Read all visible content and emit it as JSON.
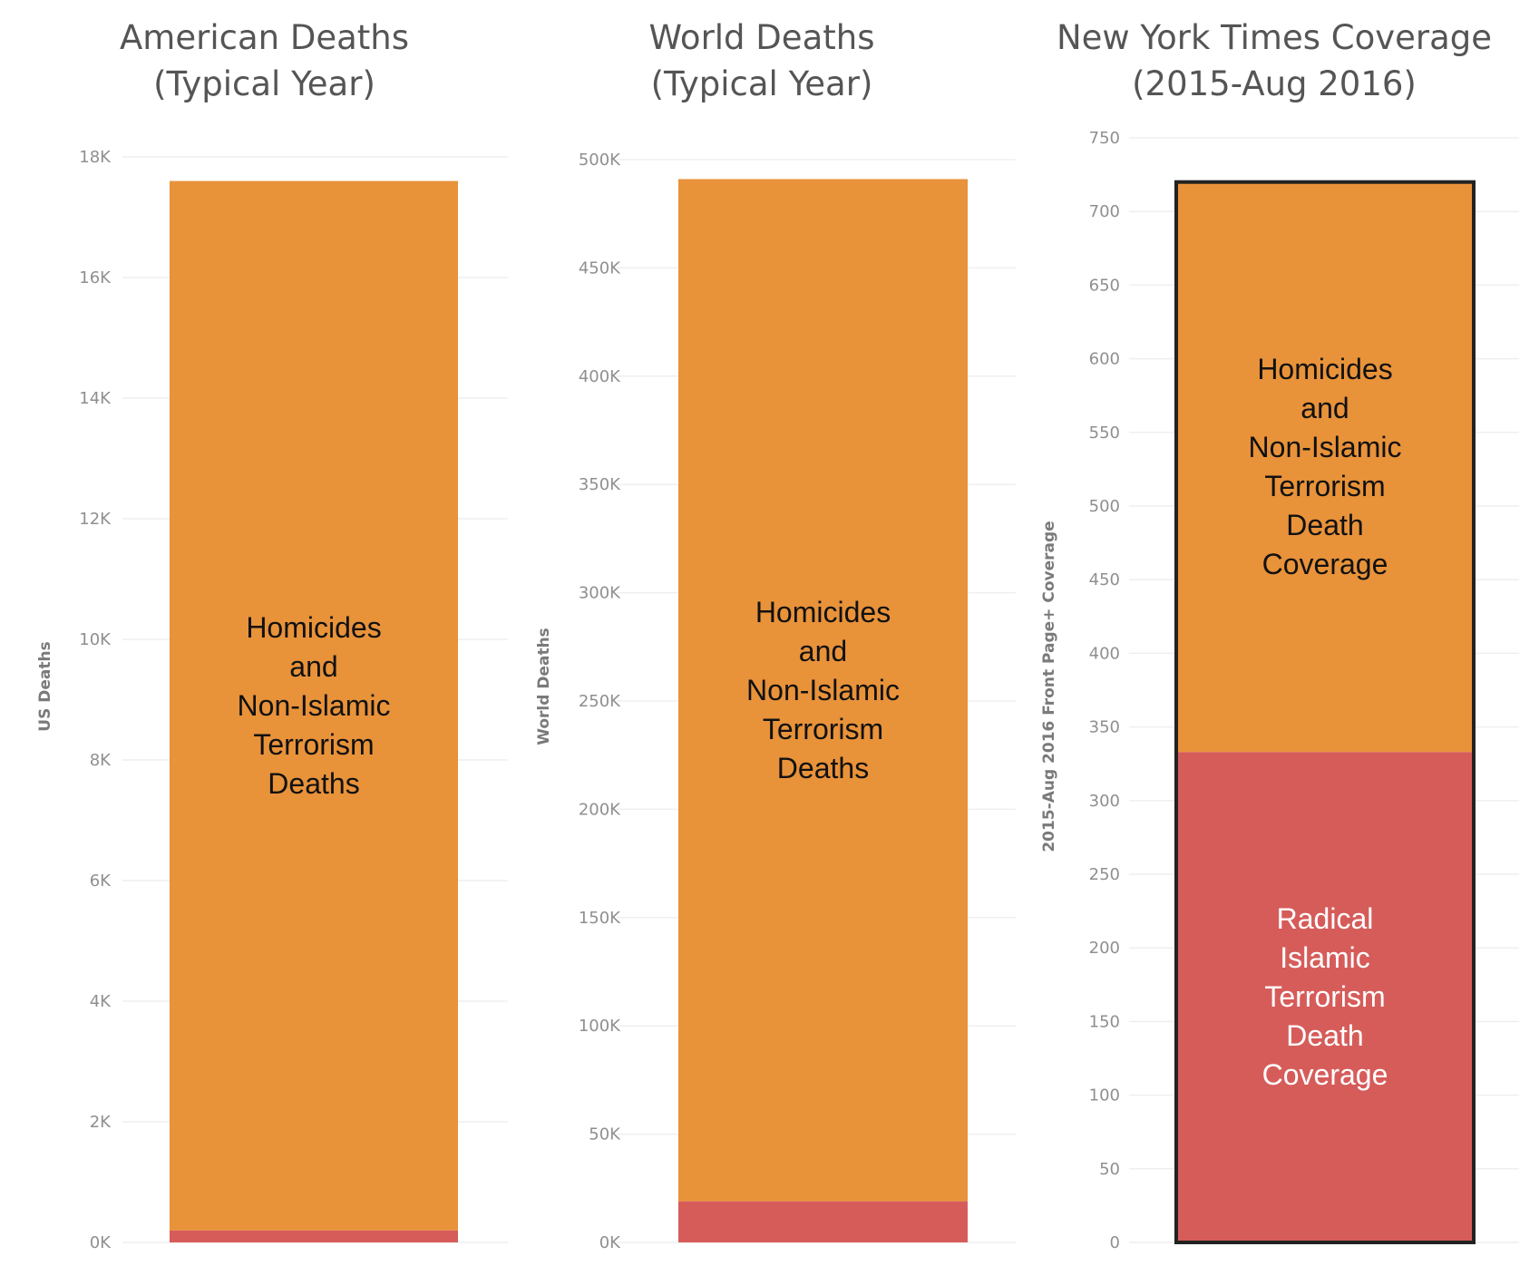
{
  "chart_data": [
    {
      "type": "bar",
      "stacked": true,
      "title": "American Deaths\n(Typical Year)",
      "title_lines": [
        "American Deaths",
        "(Typical Year)"
      ],
      "ylabel": "US Deaths",
      "ylim": [
        0,
        18000
      ],
      "yticks": [
        0,
        2000,
        4000,
        6000,
        8000,
        10000,
        12000,
        14000,
        16000,
        18000
      ],
      "ytick_labels": [
        "0K",
        "2K",
        "4K",
        "6K",
        "8K",
        "10K",
        "12K",
        "14K",
        "16K",
        "18K"
      ],
      "segments": [
        {
          "key": "radical",
          "value": 200,
          "color": "#d65c5a",
          "label": ""
        },
        {
          "key": "homicides",
          "value": 17400,
          "color": "#e8923a",
          "label": "Homicides\nand\nNon-Islamic\nTerrorism\nDeaths"
        }
      ],
      "outline": false
    },
    {
      "type": "bar",
      "stacked": true,
      "title": "World Deaths\n(Typical Year)",
      "title_lines": [
        "World Deaths",
        "(Typical Year)"
      ],
      "ylabel": "World Deaths",
      "ylim": [
        0,
        500000
      ],
      "yticks": [
        0,
        50000,
        100000,
        150000,
        200000,
        250000,
        300000,
        350000,
        400000,
        450000,
        500000
      ],
      "ytick_labels": [
        "0K",
        "50K",
        "100K",
        "150K",
        "200K",
        "250K",
        "300K",
        "350K",
        "400K",
        "450K",
        "500K"
      ],
      "segments": [
        {
          "key": "radical",
          "value": 19000,
          "color": "#d65c5a",
          "label": ""
        },
        {
          "key": "homicides",
          "value": 472000,
          "color": "#e8923a",
          "label": "Homicides\nand\nNon-Islamic\nTerrorism\nDeaths"
        }
      ],
      "outline": false
    },
    {
      "type": "bar",
      "stacked": true,
      "title": "New York Times Coverage\n(2015-Aug 2016)",
      "title_lines": [
        "New York Times Coverage",
        "(2015-Aug 2016)"
      ],
      "ylabel": "2015-Aug 2016 Front Page+ Coverage",
      "ylim": [
        0,
        750
      ],
      "yticks": [
        0,
        50,
        100,
        150,
        200,
        250,
        300,
        350,
        400,
        450,
        500,
        550,
        600,
        650,
        700,
        750
      ],
      "ytick_labels": [
        "0",
        "50",
        "100",
        "150",
        "200",
        "250",
        "300",
        "350",
        "400",
        "450",
        "500",
        "550",
        "600",
        "650",
        "700",
        "750"
      ],
      "segments": [
        {
          "key": "radical",
          "value": 333,
          "color": "#d65c5a",
          "label": "Radical\nIslamic\nTerrorism\nDeath\nCoverage"
        },
        {
          "key": "homicides",
          "value": 387,
          "color": "#e8923a",
          "label": "Homicides\nand\nNon-Islamic\nTerrorism\nDeath\nCoverage"
        }
      ],
      "outline": true
    }
  ]
}
